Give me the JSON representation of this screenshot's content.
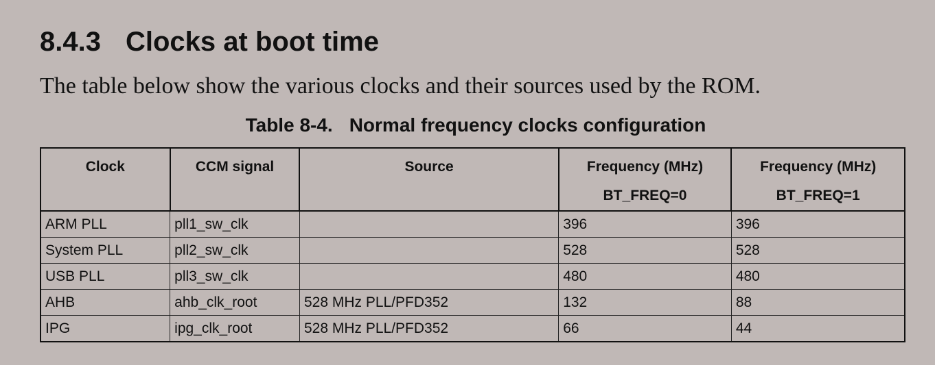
{
  "section": {
    "number": "8.4.3",
    "title": "Clocks at boot time"
  },
  "intro": "The table below show the various clocks and their sources used by the ROM.",
  "table_caption": {
    "number": "Table 8-4.",
    "title": "Normal frequency clocks configuration"
  },
  "table": {
    "headers": [
      [
        "Clock"
      ],
      [
        "CCM signal"
      ],
      [
        "Source"
      ],
      [
        "Frequency (MHz)",
        "BT_FREQ=0"
      ],
      [
        "Frequency (MHz)",
        "BT_FREQ=1"
      ]
    ],
    "rows": [
      [
        "ARM PLL",
        "pll1_sw_clk",
        "",
        "396",
        "396"
      ],
      [
        "System PLL",
        "pll2_sw_clk",
        "",
        "528",
        "528"
      ],
      [
        "USB PLL",
        "pll3_sw_clk",
        "",
        "480",
        "480"
      ],
      [
        "AHB",
        "ahb_clk_root",
        "528 MHz PLL/PFD352",
        "132",
        "88"
      ],
      [
        "IPG",
        "ipg_clk_root",
        "528 MHz PLL/PFD352",
        "66",
        "44"
      ]
    ]
  }
}
